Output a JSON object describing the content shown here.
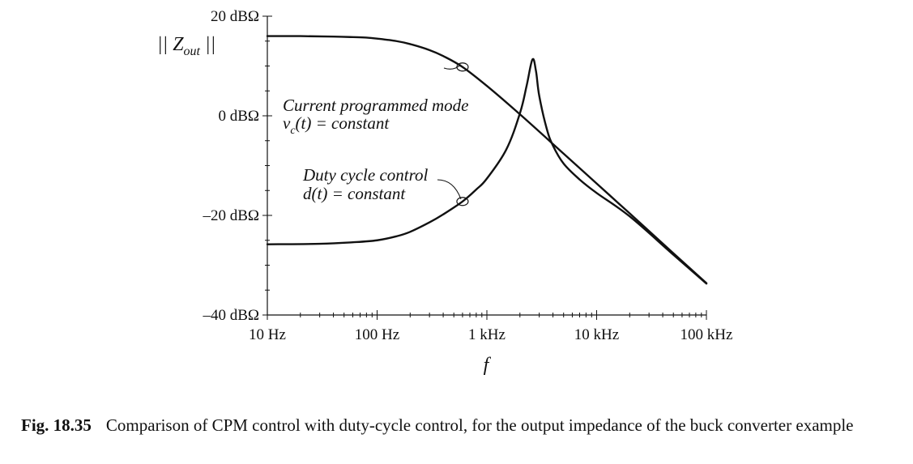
{
  "chart_data": {
    "type": "line",
    "title": "",
    "xlabel": "f",
    "ylabel_main": "|| Z",
    "ylabel_sub": "out",
    "ylabel_end": " ||",
    "x_scale": "log",
    "xlim_hz": [
      10,
      100000
    ],
    "ylim_db": [
      -40,
      20
    ],
    "x_ticks": [
      {
        "value": 10,
        "label": "10 Hz"
      },
      {
        "value": 100,
        "label": "100 Hz"
      },
      {
        "value": 1000,
        "label": "1 kHz"
      },
      {
        "value": 10000,
        "label": "10 kHz"
      },
      {
        "value": 100000,
        "label": "100 kHz"
      }
    ],
    "y_ticks": [
      {
        "value": 20,
        "label": "20 dBΩ"
      },
      {
        "value": 0,
        "label": "0 dBΩ"
      },
      {
        "value": -20,
        "label": "–20 dBΩ"
      },
      {
        "value": -40,
        "label": "–40 dBΩ"
      }
    ],
    "grid": false,
    "series": [
      {
        "name": "Current programmed mode",
        "x": [
          10,
          20,
          40,
          60,
          80,
          100,
          150,
          200,
          300,
          400,
          600,
          1000,
          2000,
          5000,
          10000,
          20000,
          50000,
          100000
        ],
        "y": [
          16.0,
          16.0,
          15.9,
          15.8,
          15.7,
          15.5,
          15.0,
          14.4,
          13.2,
          12.0,
          9.8,
          6.0,
          0.3,
          -7.6,
          -13.6,
          -19.6,
          -27.6,
          -33.6
        ]
      },
      {
        "name": "Duty cycle control",
        "x": [
          10,
          30,
          60,
          100,
          150,
          200,
          300,
          400,
          600,
          800,
          1000,
          1500,
          2000,
          2300,
          2600,
          2800,
          3000,
          3500,
          4000,
          5000,
          7000,
          10000,
          20000,
          50000,
          100000
        ],
        "y": [
          -25.8,
          -25.7,
          -25.4,
          -25.0,
          -24.2,
          -23.3,
          -21.4,
          -19.8,
          -17.2,
          -14.8,
          -12.6,
          -6.8,
          0.5,
          6.0,
          11.3,
          9.0,
          4.0,
          -2.5,
          -6.0,
          -9.6,
          -12.8,
          -15.5,
          -20.2,
          -27.9,
          -33.7
        ]
      }
    ],
    "annotations": [
      {
        "line1": "Current programmed mode",
        "line2_pre": "v",
        "line2_sub": "c",
        "line2_post": "(t) = constant",
        "series": 0,
        "marker_at_hz": 600
      },
      {
        "line1": "Duty cycle control",
        "line2": "d(t) = constant",
        "series": 1,
        "marker_at_hz": 600
      }
    ]
  },
  "caption": {
    "label": "Fig. 18.35",
    "text": "Comparison of CPM control with duty-cycle control, for the output impedance of the buck converter example"
  }
}
